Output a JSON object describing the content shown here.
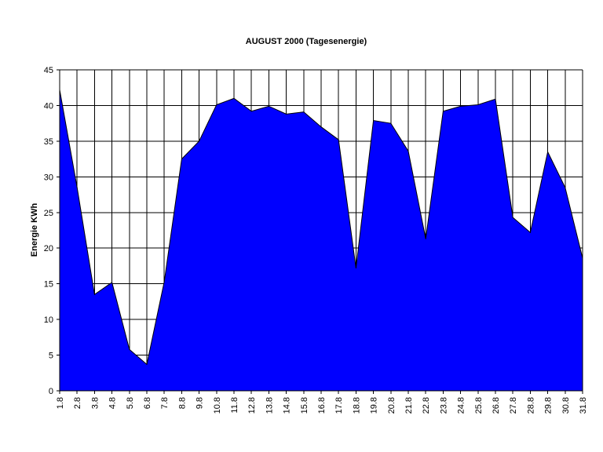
{
  "chart_data": {
    "type": "area",
    "title": "AUGUST 2000 (Tagesenergie)",
    "xlabel": "",
    "ylabel": "Energie KWh",
    "categories": [
      "1.8",
      "2.8",
      "3.8",
      "4.8",
      "5.8",
      "6.8",
      "7.8",
      "8.8",
      "9.8",
      "10.8",
      "11.8",
      "12.8",
      "13.8",
      "14.8",
      "15.8",
      "16.8",
      "17.8",
      "18.8",
      "19.8",
      "20.8",
      "21.8",
      "22.8",
      "23.8",
      "24.8",
      "25.8",
      "26.8",
      "27.8",
      "28.8",
      "29.8",
      "30.8",
      "31.8"
    ],
    "values": [
      42.2,
      28.5,
      13.5,
      15.2,
      5.8,
      3.7,
      15.3,
      32.5,
      35.0,
      40.1,
      41.0,
      39.2,
      39.9,
      38.8,
      39.1,
      37.0,
      35.2,
      17.2,
      37.9,
      37.5,
      33.6,
      21.3,
      39.2,
      39.9,
      40.1,
      40.9,
      24.3,
      22.2,
      33.5,
      28.5,
      18.6
    ],
    "ylim": [
      0,
      45
    ],
    "yticks": [
      0,
      5,
      10,
      15,
      20,
      25,
      30,
      35,
      40,
      45
    ],
    "grid": true,
    "legend": "none",
    "fill_color": "#0000FF",
    "line_color": "#000000"
  }
}
